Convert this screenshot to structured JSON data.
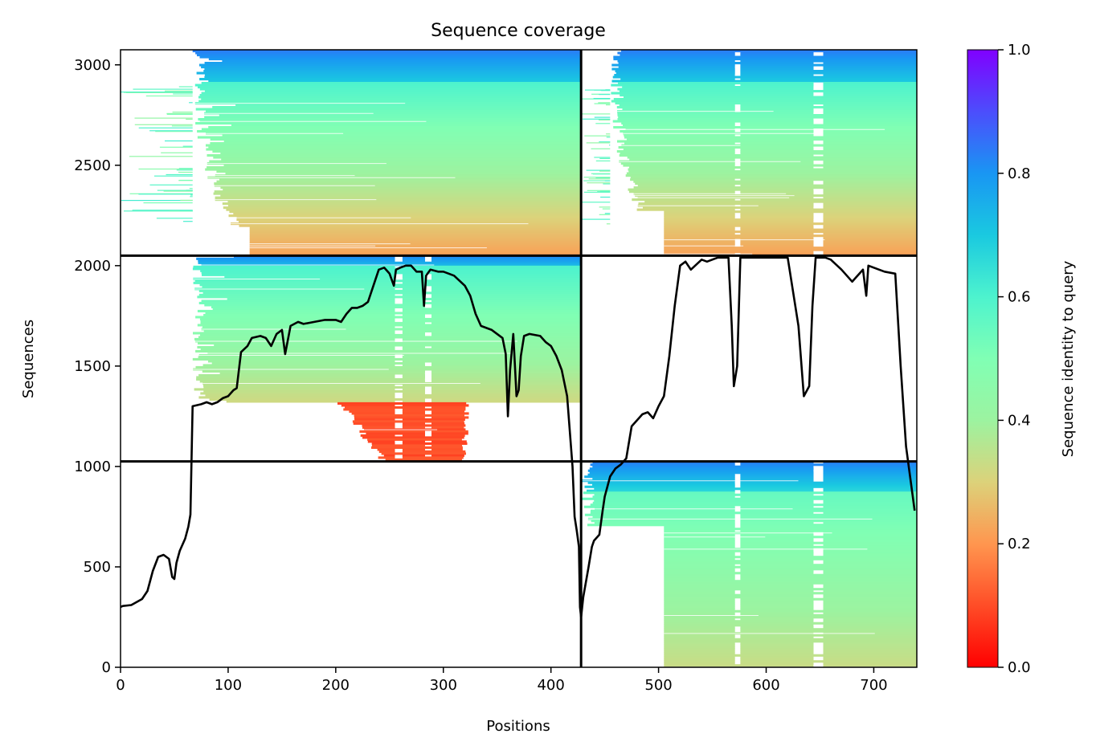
{
  "chart_data": {
    "type": "heatmap",
    "title": "Sequence coverage",
    "xlabel": "Positions",
    "ylabel": "Sequences",
    "colorbar_label": "Sequence identity to query",
    "xlim": [
      0,
      740
    ],
    "ylim": [
      0,
      3075
    ],
    "xticks": [
      0,
      100,
      200,
      300,
      400,
      500,
      600,
      700
    ],
    "yticks": [
      0,
      500,
      1000,
      1500,
      2000,
      2500,
      3000
    ],
    "colorbar_range": [
      0,
      1
    ],
    "colorbar_ticks": [
      "0.0",
      "0.2",
      "0.4",
      "0.6",
      "0.8",
      "1.0"
    ],
    "colormap": "rainbow_r",
    "divider_x": [
      428
    ],
    "divider_y": [
      1025,
      2050
    ],
    "blocks": [
      {
        "x": [
          0,
          428
        ],
        "y": [
          2050,
          3075
        ],
        "x_start": 67,
        "x_end": 428,
        "top_rows": 165,
        "top_identity": [
          0.84,
          0.7
        ],
        "identity_top": 0.6,
        "identity_bottom": 0.22,
        "bottom_x_start": 120,
        "bottom_x_end": 428,
        "bottom_rows": 140,
        "gaps": []
      },
      {
        "x": [
          428,
          740
        ],
        "y": [
          2050,
          3075
        ],
        "x_start": 455,
        "x_end": 740,
        "top_rows": 165,
        "top_identity": [
          0.84,
          0.7
        ],
        "identity_top": 0.6,
        "identity_bottom": 0.22,
        "bottom_x_start": 505,
        "bottom_x_end": 740,
        "bottom_rows": 220,
        "gaps": [
          [
            571,
            576
          ],
          [
            644,
            653
          ]
        ]
      },
      {
        "x": [
          0,
          428
        ],
        "y": [
          1025,
          2050
        ],
        "x_start": 67,
        "x_end": 428,
        "top_rows": 60,
        "top_identity": [
          0.84,
          0.72
        ],
        "identity_top": 0.6,
        "identity_bottom": 0.2,
        "bottom_x_start": 67,
        "bottom_x_end": 428,
        "bottom_rows": 0,
        "red_region": {
          "y": [
            1025,
            1320
          ],
          "x": [
            200,
            320
          ],
          "identity": 0.08
        },
        "gaps": [
          [
            255,
            262
          ],
          [
            283,
            289
          ]
        ]
      },
      {
        "x": [
          428,
          740
        ],
        "y": [
          0,
          1025
        ],
        "x_start": 428,
        "x_end": 740,
        "top_rows": 160,
        "top_identity": [
          0.84,
          0.66
        ],
        "identity_top": 0.55,
        "identity_bottom": 0.33,
        "bottom_x_start": 505,
        "bottom_x_end": 740,
        "bottom_rows": 700,
        "gaps": [
          [
            571,
            576
          ],
          [
            644,
            653
          ]
        ]
      }
    ],
    "coverage_line": {
      "x": [
        0,
        2,
        10,
        20,
        25,
        30,
        35,
        40,
        45,
        48,
        50,
        52,
        55,
        60,
        63,
        65,
        67,
        75,
        80,
        85,
        90,
        95,
        100,
        105,
        108,
        110,
        112,
        118,
        122,
        130,
        135,
        140,
        145,
        150,
        153,
        158,
        165,
        170,
        180,
        190,
        200,
        205,
        210,
        215,
        220,
        225,
        230,
        235,
        240,
        245,
        250,
        254,
        256,
        260,
        265,
        270,
        275,
        280,
        282,
        284,
        288,
        295,
        300,
        305,
        310,
        320,
        325,
        330,
        335,
        340,
        345,
        350,
        355,
        358,
        360,
        362,
        365,
        368,
        370,
        372,
        375,
        380,
        390,
        395,
        400,
        405,
        410,
        415,
        420,
        422,
        424,
        426,
        427,
        428,
        430,
        435,
        438,
        440,
        445,
        448,
        450,
        455,
        460,
        465,
        470,
        475,
        480,
        485,
        490,
        495,
        500,
        505,
        510,
        515,
        520,
        525,
        530,
        540,
        545,
        555,
        565,
        568,
        570,
        573,
        576,
        580,
        585,
        590,
        600,
        610,
        620,
        630,
        635,
        640,
        643,
        646,
        650,
        655,
        660,
        670,
        680,
        690,
        693,
        695,
        700,
        705,
        710,
        720,
        725,
        730,
        735,
        738,
        740
      ],
      "y": [
        300,
        305,
        310,
        340,
        380,
        480,
        550,
        560,
        540,
        450,
        440,
        520,
        580,
        640,
        700,
        760,
        1300,
        1310,
        1320,
        1310,
        1320,
        1340,
        1350,
        1380,
        1390,
        1480,
        1570,
        1600,
        1640,
        1650,
        1640,
        1600,
        1660,
        1680,
        1560,
        1700,
        1720,
        1710,
        1720,
        1730,
        1730,
        1720,
        1760,
        1790,
        1790,
        1800,
        1820,
        1900,
        1980,
        1990,
        1960,
        1900,
        1980,
        1990,
        2000,
        2000,
        1970,
        1970,
        1800,
        1950,
        1980,
        1970,
        1970,
        1960,
        1950,
        1900,
        1850,
        1760,
        1700,
        1690,
        1680,
        1660,
        1640,
        1560,
        1250,
        1480,
        1660,
        1350,
        1380,
        1550,
        1650,
        1660,
        1650,
        1620,
        1600,
        1550,
        1480,
        1350,
        1000,
        750,
        680,
        600,
        300,
        250,
        350,
        500,
        600,
        630,
        660,
        780,
        850,
        950,
        990,
        1010,
        1040,
        1200,
        1230,
        1260,
        1270,
        1240,
        1300,
        1350,
        1550,
        1800,
        2000,
        2020,
        1980,
        2030,
        2020,
        2040,
        2040,
        1700,
        1400,
        1500,
        2040,
        2040,
        2040,
        2040,
        2040,
        2040,
        2040,
        1700,
        1350,
        1400,
        1800,
        2040,
        2040,
        2040,
        2030,
        1980,
        1920,
        1980,
        1850,
        2000,
        1990,
        1980,
        1970,
        1960,
        1500,
        1100,
        900,
        780
      ]
    }
  }
}
